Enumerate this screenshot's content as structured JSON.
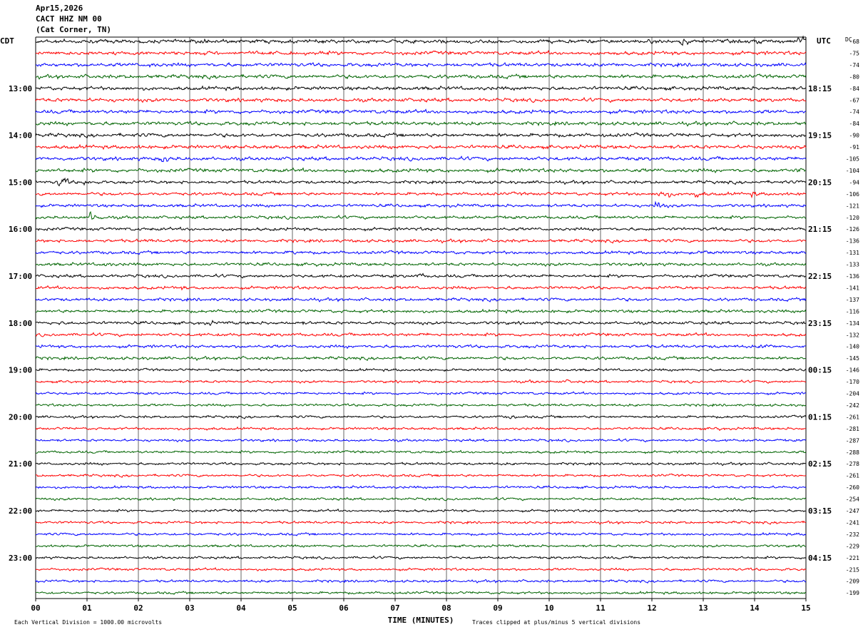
{
  "header": {
    "date": "Apr15,2026",
    "station": "CACT HHZ NM 00",
    "location": "(Cat Corner, TN)"
  },
  "chart_data": {
    "type": "line",
    "title": "CACT HHZ NM 00",
    "xlabel": "TIME (MINUTES)",
    "x_ticks": [
      "00",
      "01",
      "02",
      "03",
      "04",
      "05",
      "06",
      "07",
      "08",
      "09",
      "10",
      "11",
      "12",
      "13",
      "14",
      "15"
    ],
    "xlim": [
      0,
      15
    ],
    "left_axis_label": "CDT",
    "right_axis_label": "UTC",
    "dc_label": "DC",
    "left_time_labels": [
      "13:00",
      "14:00",
      "15:00",
      "16:00",
      "17:00",
      "18:00",
      "19:00",
      "20:00",
      "21:00",
      "22:00",
      "23:00"
    ],
    "right_time_labels": [
      "18:15",
      "19:15",
      "20:15",
      "21:15",
      "22:15",
      "23:15",
      "00:15",
      "01:15",
      "02:15",
      "03:15",
      "04:15"
    ],
    "dc_offsets": [
      "-68",
      "-75",
      "-74",
      "-80",
      "-84",
      "-67",
      "-74",
      "-84",
      "-90",
      "-91",
      "-105",
      "-104",
      "-94",
      "-106",
      "-121",
      "-120",
      "-126",
      "-136",
      "-131",
      "-133",
      "-136",
      "-141",
      "-137",
      "-116",
      "-134",
      "-132",
      "-140",
      "-145",
      "-146",
      "-170",
      "-204",
      "-242",
      "-261",
      "-281",
      "-287",
      "-288",
      "-278",
      "-261",
      "-260",
      "-254",
      "-247",
      "-241",
      "-232",
      "-229",
      "-221",
      "-215",
      "-209",
      "-199"
    ],
    "trace_colors": [
      "#000000",
      "#ff0000",
      "#0000ff",
      "#006400"
    ],
    "grid": "vertical lines each minute",
    "footer_left": "Each Vertical Division = 1000.00 microvolts",
    "footer_right": "Traces clipped at plus/minus 5 vertical divisions",
    "events": [
      {
        "row": 0,
        "minute": 3.3,
        "amp": 7
      },
      {
        "row": 0,
        "minute": 12.6,
        "amp": 7
      },
      {
        "row": 0,
        "minute": 14.9,
        "amp": 8
      },
      {
        "row": 0,
        "minute": 14.1,
        "amp": 5
      },
      {
        "row": 2,
        "minute": 2.3,
        "amp": 4
      },
      {
        "row": 2,
        "minute": 3.8,
        "amp": 3
      },
      {
        "row": 5,
        "minute": 7.2,
        "amp": 3
      },
      {
        "row": 6,
        "minute": 10.9,
        "amp": 3
      },
      {
        "row": 10,
        "minute": 2.5,
        "amp": 7
      },
      {
        "row": 9,
        "minute": 10.6,
        "amp": 3
      },
      {
        "row": 11,
        "minute": 14.9,
        "amp": 4
      },
      {
        "row": 11,
        "minute": 5.7,
        "amp": 3
      },
      {
        "row": 12,
        "minute": 0.5,
        "amp": 8
      },
      {
        "row": 12,
        "minute": 1.0,
        "amp": 5
      },
      {
        "row": 13,
        "minute": 12.2,
        "amp": 9
      },
      {
        "row": 13,
        "minute": 12.9,
        "amp": 6
      },
      {
        "row": 13,
        "minute": 14.0,
        "amp": 4
      },
      {
        "row": 14,
        "minute": 12.1,
        "amp": 7
      },
      {
        "row": 14,
        "minute": 5.6,
        "amp": 3
      },
      {
        "row": 15,
        "minute": 1.1,
        "amp": 8
      },
      {
        "row": 16,
        "minute": 3.0,
        "amp": 3
      },
      {
        "row": 17,
        "minute": 2.2,
        "amp": 3
      },
      {
        "row": 18,
        "minute": 5.0,
        "amp": 4
      },
      {
        "row": 18,
        "minute": 13.1,
        "amp": 4
      },
      {
        "row": 19,
        "minute": 1.4,
        "amp": 4
      },
      {
        "row": 19,
        "minute": 5.5,
        "amp": 3
      },
      {
        "row": 20,
        "minute": 7.5,
        "amp": 4
      },
      {
        "row": 20,
        "minute": 1.9,
        "amp": 3
      },
      {
        "row": 21,
        "minute": 2.9,
        "amp": 3
      },
      {
        "row": 21,
        "minute": 7.5,
        "amp": 3
      },
      {
        "row": 22,
        "minute": 5.3,
        "amp": 3
      },
      {
        "row": 24,
        "minute": 3.4,
        "amp": 4
      },
      {
        "row": 24,
        "minute": 0.5,
        "amp": 3
      },
      {
        "row": 24,
        "minute": 5.2,
        "amp": 3
      },
      {
        "row": 25,
        "minute": 7.6,
        "amp": 3
      },
      {
        "row": 26,
        "minute": 14.2,
        "amp": 5
      },
      {
        "row": 29,
        "minute": 0.6,
        "amp": 3
      },
      {
        "row": 29,
        "minute": 10.4,
        "amp": 3
      },
      {
        "row": 29,
        "minute": 9.7,
        "amp": 3
      },
      {
        "row": 33,
        "minute": 13.3,
        "amp": 3
      },
      {
        "row": 33,
        "minute": 3.4,
        "amp": 3
      },
      {
        "row": 32,
        "minute": 9.3,
        "amp": 3
      }
    ]
  }
}
